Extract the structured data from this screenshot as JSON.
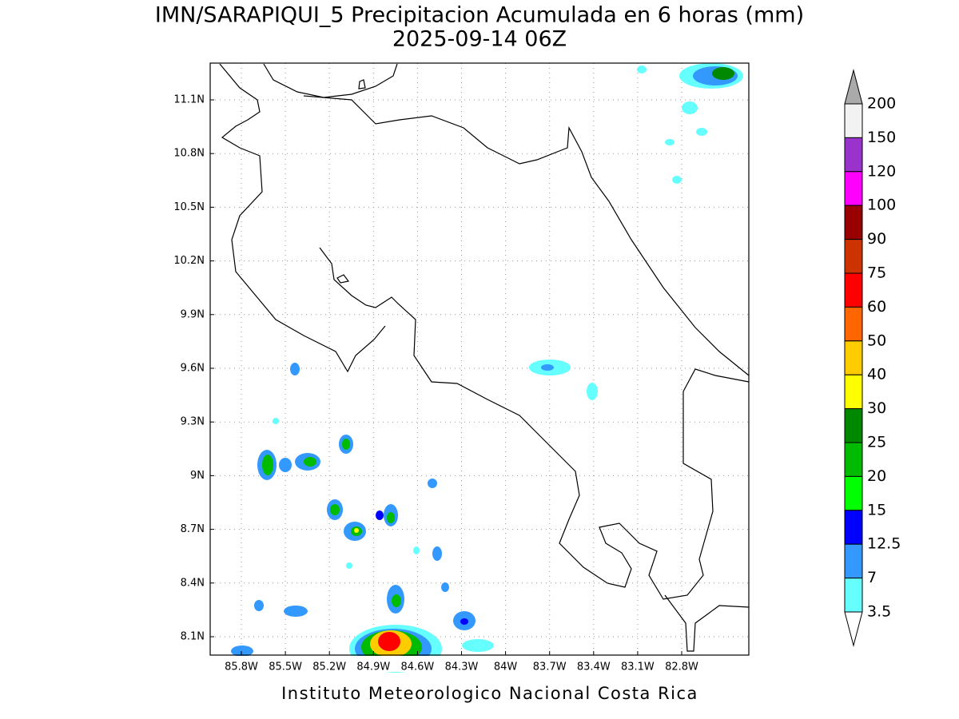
{
  "title": "IMN/SARAPIQUI_5 Precipitacion Acumulada en 6 horas (mm)",
  "subtitle": "2025-09-14 06Z",
  "lat_ticks": [
    {
      "value": 11.1,
      "label": "11.1N"
    },
    {
      "value": 10.8,
      "label": "10.8N"
    },
    {
      "value": 10.5,
      "label": "10.5N"
    },
    {
      "value": 10.2,
      "label": "10.2N"
    },
    {
      "value": 9.9,
      "label": "9.9N"
    },
    {
      "value": 9.6,
      "label": "9.6N"
    },
    {
      "value": 9.3,
      "label": "9.3N"
    },
    {
      "value": 9,
      "label": "9N"
    },
    {
      "value": 8.7,
      "label": "8.7N"
    },
    {
      "value": 8.4,
      "label": "8.4N"
    },
    {
      "value": 8.1,
      "label": "8.1N"
    }
  ],
  "lon_ticks": [
    {
      "value": -85.8,
      "label": "85.8W"
    },
    {
      "value": -85.5,
      "label": "85.5W"
    },
    {
      "value": -85.2,
      "label": "85.2W"
    },
    {
      "value": -84.9,
      "label": "84.9W"
    },
    {
      "value": -84.6,
      "label": "84.6W"
    },
    {
      "value": -84.3,
      "label": "84.3W"
    },
    {
      "value": -84,
      "label": "84W"
    },
    {
      "value": -83.7,
      "label": "83.7W"
    },
    {
      "value": -83.4,
      "label": "83.4W"
    },
    {
      "value": -83.1,
      "label": "83.1W"
    },
    {
      "value": -82.8,
      "label": "82.8W"
    }
  ],
  "colorbar": {
    "levels": [
      200,
      150,
      120,
      100,
      90,
      75,
      60,
      50,
      40,
      30,
      25,
      20,
      15,
      12.5,
      7,
      3.5
    ],
    "colors": [
      "#f2f2f2",
      "#9933cc",
      "#ff00ff",
      "#990000",
      "#cc3300",
      "#ff0000",
      "#ff6600",
      "#ffcc00",
      "#ffff00",
      "#008800",
      "#00bb00",
      "#00ff00",
      "#0000ff",
      "#3399ff",
      "#66ffff"
    ],
    "over_color": "#aaaaaa",
    "under_color": "#ffffff"
  },
  "footer": "Instituto Meteorologico Nacional Costa Rica"
}
